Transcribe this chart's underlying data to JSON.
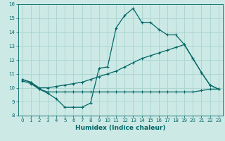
{
  "xlabel": "Humidex (Indice chaleur)",
  "background_color": "#cce9e5",
  "line_color": "#006666",
  "grid_color": "#aad4cf",
  "xlim": [
    -0.5,
    23.5
  ],
  "ylim": [
    8,
    16
  ],
  "xticks": [
    0,
    1,
    2,
    3,
    4,
    5,
    6,
    7,
    8,
    9,
    10,
    11,
    12,
    13,
    14,
    15,
    16,
    17,
    18,
    19,
    20,
    21,
    22,
    23
  ],
  "yticks": [
    8,
    9,
    10,
    11,
    12,
    13,
    14,
    15,
    16
  ],
  "series": [
    {
      "x": [
        0,
        1,
        2,
        3,
        4,
        5,
        6,
        7,
        8,
        9,
        10,
        11,
        12,
        13,
        14,
        15,
        16,
        17,
        18,
        19,
        20,
        21,
        22,
        23
      ],
      "y": [
        10.6,
        10.4,
        9.9,
        9.6,
        9.2,
        8.6,
        8.6,
        8.6,
        8.9,
        11.4,
        11.5,
        14.3,
        15.2,
        15.7,
        14.7,
        14.7,
        14.2,
        13.8,
        13.8,
        13.1,
        12.1,
        11.1,
        10.2,
        9.9
      ]
    },
    {
      "x": [
        0,
        1,
        2,
        3,
        4,
        5,
        6,
        7,
        8,
        9,
        10,
        11,
        12,
        13,
        14,
        15,
        16,
        17,
        18,
        19,
        20,
        21,
        22,
        23
      ],
      "y": [
        10.6,
        10.4,
        10.0,
        10.0,
        10.1,
        10.2,
        10.3,
        10.4,
        10.6,
        10.8,
        11.0,
        11.2,
        11.5,
        11.8,
        12.1,
        12.3,
        12.5,
        12.7,
        12.9,
        13.1,
        12.1,
        11.1,
        10.2,
        9.9
      ]
    },
    {
      "x": [
        0,
        1,
        2,
        3,
        4,
        5,
        6,
        7,
        8,
        9,
        10,
        11,
        12,
        13,
        14,
        15,
        16,
        17,
        18,
        19,
        20,
        21,
        22,
        23
      ],
      "y": [
        10.5,
        10.3,
        9.9,
        9.7,
        9.7,
        9.7,
        9.7,
        9.7,
        9.7,
        9.7,
        9.7,
        9.7,
        9.7,
        9.7,
        9.7,
        9.7,
        9.7,
        9.7,
        9.7,
        9.7,
        9.7,
        9.8,
        9.9,
        9.9
      ]
    }
  ]
}
